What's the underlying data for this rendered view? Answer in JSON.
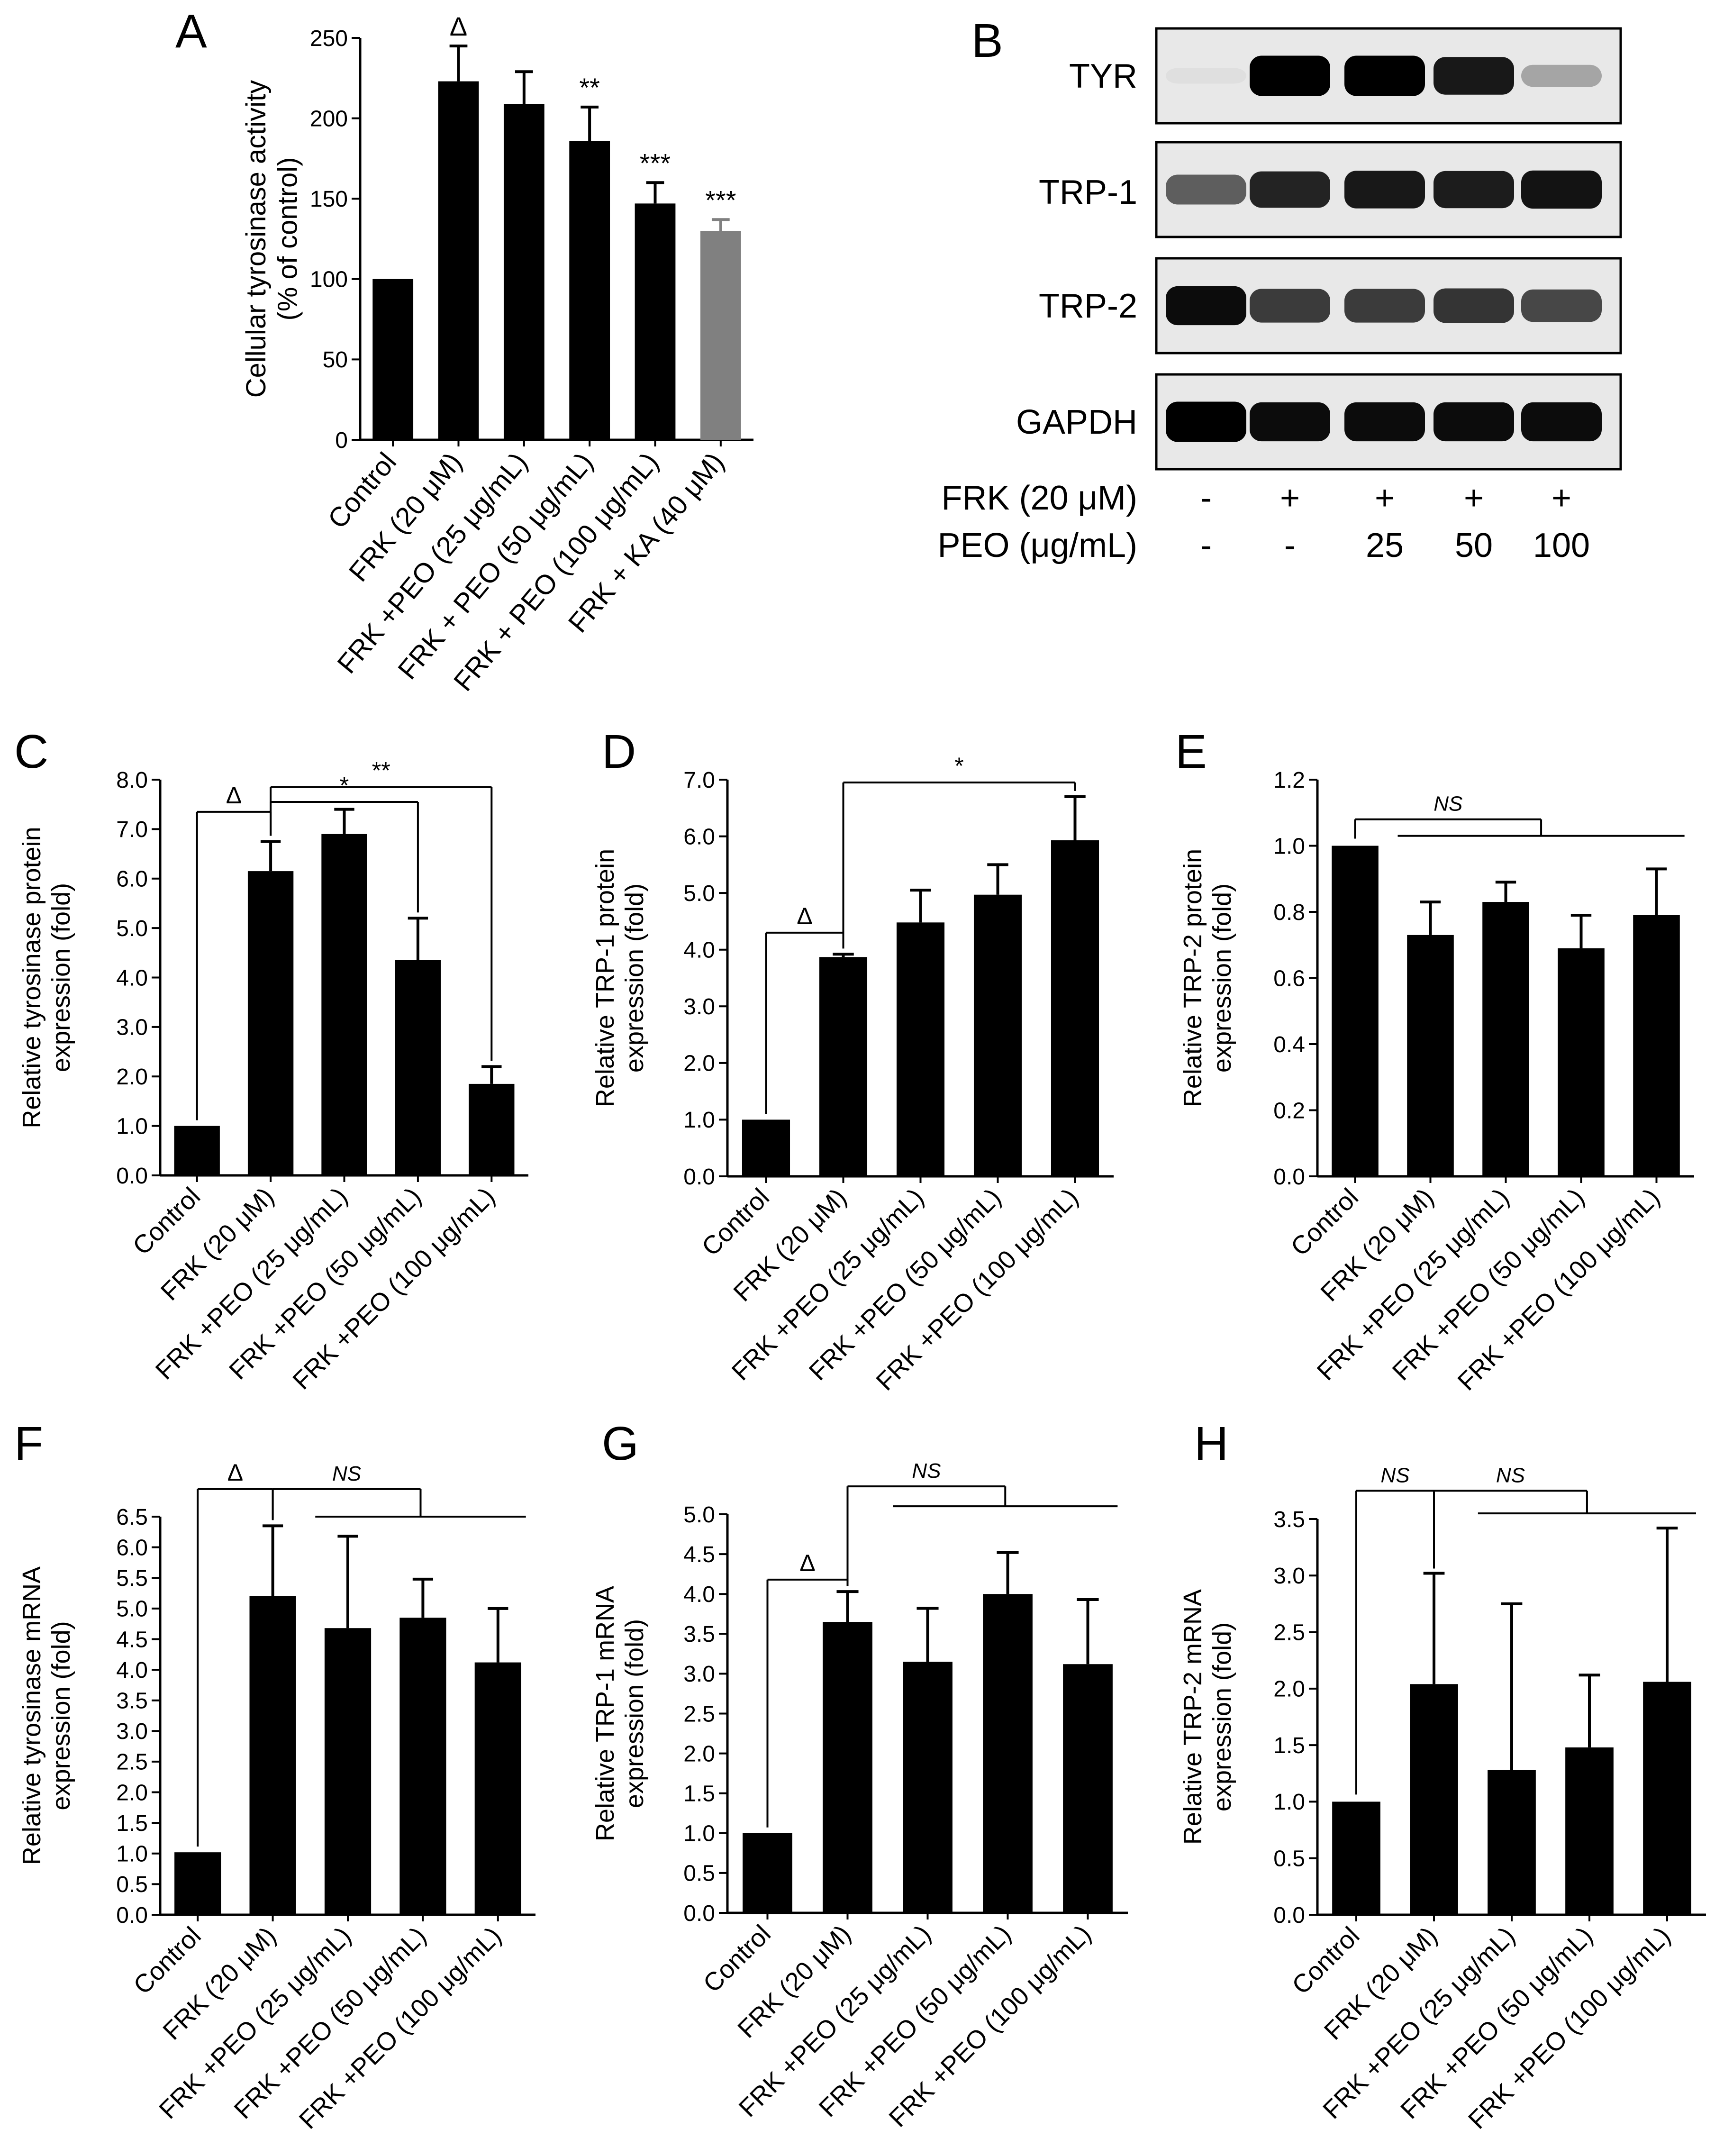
{
  "colors": {
    "bar": "#000000",
    "bar_alt": "#808080",
    "axis": "#000000",
    "background": "#ffffff"
  },
  "chart_data": [
    {
      "panel": "A",
      "type": "bar",
      "categories": [
        "Control",
        "FRK (20 μM)",
        "FRK +PEO (25 μg/mL)",
        "FRK + PEO (50 μg/mL)",
        "FRK + PEO (100 μg/mL)",
        "FRK + KA (40 μM)"
      ],
      "values": [
        100,
        223,
        209,
        186,
        147,
        130
      ],
      "errors": [
        0,
        22,
        20,
        21,
        13,
        7
      ],
      "bar_colors": [
        "#000000",
        "#000000",
        "#000000",
        "#000000",
        "#000000",
        "#808080"
      ],
      "annotations": [
        "",
        "Δ",
        "",
        "**",
        "***",
        "***"
      ],
      "ylabel_lines": [
        "Cellular tyrosinase activity",
        "(% of control)"
      ],
      "ylim": [
        0,
        250
      ],
      "yticks": [
        0,
        50,
        100,
        150,
        200,
        250
      ],
      "ytick_labels": [
        "0",
        "50",
        "100",
        "150",
        "200",
        "250"
      ],
      "brackets": []
    },
    {
      "panel": "C",
      "type": "bar",
      "categories": [
        "Control",
        "FRK (20 μM)",
        "FRK +PEO (25 μg/mL)",
        "FRK +PEO (50 μg/mL)",
        "FRK +PEO (100 μg/mL)"
      ],
      "values": [
        1.0,
        6.15,
        6.9,
        4.35,
        1.85
      ],
      "errors": [
        0,
        0.6,
        0.5,
        0.85,
        0.35
      ],
      "ylabel_lines": [
        "Relative tyrosinase protein",
        "expression (fold)"
      ],
      "ylim": [
        0,
        8
      ],
      "yticks": [
        0,
        1,
        2,
        3,
        4,
        5,
        6,
        7,
        8
      ],
      "ytick_labels": [
        "0.0",
        "1.0",
        "2.0",
        "3.0",
        "4.0",
        "5.0",
        "6.0",
        "7.0",
        "8.0"
      ],
      "brackets": [
        {
          "from": 0,
          "to": 1,
          "y": 7.35,
          "label": "Δ",
          "italic": false
        },
        {
          "from": 1,
          "to": 3,
          "y": 7.55,
          "label": "*",
          "italic": false
        },
        {
          "from": 1,
          "to": 4,
          "y": 7.85,
          "label": "**",
          "italic": false
        }
      ]
    },
    {
      "panel": "D",
      "type": "bar",
      "categories": [
        "Control",
        "FRK (20 μM)",
        "FRK +PEO (25 μg/mL)",
        "FRK +PEO (50 μg/mL)",
        "FRK +PEO (100 μg/mL)"
      ],
      "values": [
        1.0,
        3.87,
        4.48,
        4.97,
        5.93
      ],
      "errors": [
        0,
        0.05,
        0.57,
        0.53,
        0.77
      ],
      "ylabel_lines": [
        "Relative TRP-1 protein",
        "expression (fold)"
      ],
      "ylim": [
        0,
        7
      ],
      "yticks": [
        0,
        1,
        2,
        3,
        4,
        5,
        6,
        7
      ],
      "ytick_labels": [
        "0.0",
        "1.0",
        "2.0",
        "3.0",
        "4.0",
        "5.0",
        "6.0",
        "7.0"
      ],
      "brackets": [
        {
          "from": 0,
          "to": 1,
          "y": 4.3,
          "label": "Δ",
          "italic": false
        },
        {
          "from": 1,
          "to": 4,
          "y": 6.95,
          "label": "*",
          "italic": false
        }
      ]
    },
    {
      "panel": "E",
      "type": "bar",
      "categories": [
        "Control",
        "FRK (20 μM)",
        "FRK +PEO (25 μg/mL)",
        "FRK +PEO (50 μg/mL)",
        "FRK +PEO (100 μg/mL)"
      ],
      "values": [
        1.0,
        0.73,
        0.83,
        0.69,
        0.79
      ],
      "errors": [
        0,
        0.1,
        0.06,
        0.1,
        0.14
      ],
      "ylabel_lines": [
        "Relative TRP-2 protein",
        "expression (fold)"
      ],
      "ylim": [
        0,
        1.2
      ],
      "yticks": [
        0,
        0.2,
        0.4,
        0.6,
        0.8,
        1.0,
        1.2
      ],
      "ytick_labels": [
        "0.0",
        "0.2",
        "0.4",
        "0.6",
        "0.8",
        "1.0",
        "1.2"
      ],
      "brackets": [
        {
          "type": "ns",
          "left": 0,
          "y": 1.08,
          "group_from": 1,
          "group_to": 4,
          "group_y": 1.03,
          "label": "NS",
          "italic": true
        }
      ]
    },
    {
      "panel": "F",
      "type": "bar",
      "categories": [
        "Control",
        "FRK (20 μM)",
        "FRK +PEO (25 μg/mL)",
        "FRK +PEO (50 μg/mL)",
        "FRK +PEO (100 μg/mL)"
      ],
      "values": [
        1.02,
        5.2,
        4.68,
        4.85,
        4.12
      ],
      "errors": [
        0,
        1.15,
        1.5,
        0.63,
        0.88
      ],
      "ylabel_lines": [
        "Relative tyrosinase mRNA",
        "expression (fold)"
      ],
      "ylim": [
        0,
        6.5
      ],
      "yticks": [
        0,
        0.5,
        1,
        1.5,
        2,
        2.5,
        3,
        3.5,
        4,
        4.5,
        5,
        5.5,
        6,
        6.5
      ],
      "ytick_labels": [
        "0.0",
        "0.5",
        "1.0",
        "1.5",
        "2.0",
        "2.5",
        "3.0",
        "3.5",
        "4.0",
        "4.5",
        "5.0",
        "5.5",
        "6.0",
        "6.5"
      ],
      "brackets": [
        {
          "from": 0,
          "to": 1,
          "y": 6.95,
          "label": "Δ",
          "italic": false
        },
        {
          "type": "ns",
          "left": 1,
          "y": 6.95,
          "group_from": 2,
          "group_to": 4,
          "group_y": 6.5,
          "label": "NS",
          "italic": true
        }
      ]
    },
    {
      "panel": "G",
      "type": "bar",
      "categories": [
        "Control",
        "FRK (20 μM)",
        "FRK +PEO (25 μg/mL)",
        "FRK +PEO (50 μg/mL)",
        "FRK +PEO (100 μg/mL)"
      ],
      "values": [
        1.0,
        3.65,
        3.15,
        4.0,
        3.12
      ],
      "errors": [
        0,
        0.38,
        0.67,
        0.52,
        0.81
      ],
      "ylabel_lines": [
        "Relative TRP-1 mRNA",
        "expression (fold)"
      ],
      "ylim": [
        0,
        5
      ],
      "yticks": [
        0,
        0.5,
        1,
        1.5,
        2,
        2.5,
        3,
        3.5,
        4,
        4.5,
        5
      ],
      "ytick_labels": [
        "0.0",
        "0.5",
        "1.0",
        "1.5",
        "2.0",
        "2.5",
        "3.0",
        "3.5",
        "4.0",
        "4.5",
        "5.0"
      ],
      "brackets": [
        {
          "from": 0,
          "to": 1,
          "y": 4.18,
          "label": "Δ",
          "italic": false
        },
        {
          "type": "ns",
          "left": 1,
          "y": 5.35,
          "group_from": 2,
          "group_to": 4,
          "group_y": 5.1,
          "label": "NS",
          "italic": true
        }
      ]
    },
    {
      "panel": "H",
      "type": "bar",
      "categories": [
        "Control",
        "FRK (20 μM)",
        "FRK +PEO (25 μg/mL)",
        "FRK +PEO (50 μg/mL)",
        "FRK +PEO (100 μg/mL)"
      ],
      "values": [
        1.0,
        2.04,
        1.28,
        1.48,
        2.06
      ],
      "errors": [
        0,
        0.98,
        1.47,
        0.64,
        1.36
      ],
      "ylabel_lines": [
        "Relative TRP-2 mRNA",
        "expression (fold)"
      ],
      "ylim": [
        0,
        3.5
      ],
      "yticks": [
        0,
        0.5,
        1,
        1.5,
        2,
        2.5,
        3,
        3.5
      ],
      "ytick_labels": [
        "0.0",
        "0.5",
        "1.0",
        "1.5",
        "2.0",
        "2.5",
        "3.0",
        "3.5"
      ],
      "brackets": [
        {
          "type": "ns",
          "left": 0,
          "y": 3.75,
          "group_from": 1,
          "group_to": 1,
          "group_y": 3.2,
          "label": "NS",
          "italic": true,
          "open": true
        },
        {
          "type": "ns",
          "left": 1,
          "y": 3.75,
          "group_from": 2,
          "group_to": 4,
          "group_y": 3.55,
          "label": "NS",
          "italic": true
        }
      ]
    }
  ],
  "blot": {
    "panel": "B",
    "rows": [
      {
        "label": "TYR",
        "intensities": [
          0.05,
          1.0,
          1.0,
          0.9,
          0.3
        ]
      },
      {
        "label": "TRP-1",
        "intensities": [
          0.6,
          0.85,
          0.9,
          0.88,
          0.92
        ]
      },
      {
        "label": "TRP-2",
        "intensities": [
          0.95,
          0.75,
          0.75,
          0.78,
          0.7
        ]
      },
      {
        "label": "GAPDH",
        "intensities": [
          1.0,
          0.95,
          0.95,
          0.95,
          0.95
        ]
      }
    ],
    "treatments": [
      {
        "label": "FRK (20 μM)",
        "values": [
          "-",
          "+",
          "+",
          "+",
          "+"
        ]
      },
      {
        "label": "PEO (μg/mL)",
        "values": [
          "-",
          "-",
          "25",
          "50",
          "100"
        ]
      }
    ]
  }
}
